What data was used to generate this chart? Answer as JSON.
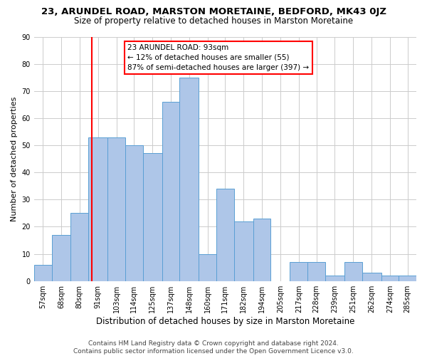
{
  "title": "23, ARUNDEL ROAD, MARSTON MORETAINE, BEDFORD, MK43 0JZ",
  "subtitle": "Size of property relative to detached houses in Marston Moretaine",
  "xlabel": "Distribution of detached houses by size in Marston Moretaine",
  "ylabel": "Number of detached properties",
  "annotation_line1": "23 ARUNDEL ROAD: 93sqm",
  "annotation_line2": "← 12% of detached houses are smaller (55)",
  "annotation_line3": "87% of semi-detached houses are larger (397) →",
  "footer_line1": "Contains HM Land Registry data © Crown copyright and database right 2024.",
  "footer_line2": "Contains public sector information licensed under the Open Government Licence v3.0.",
  "bar_edges": [
    57,
    68,
    80,
    91,
    103,
    114,
    125,
    137,
    148,
    160,
    171,
    182,
    194,
    205,
    217,
    228,
    239,
    251,
    262,
    274,
    285
  ],
  "bar_heights": [
    6,
    17,
    25,
    53,
    53,
    50,
    47,
    66,
    75,
    10,
    34,
    22,
    23,
    0,
    7,
    7,
    2,
    7,
    3,
    2,
    2
  ],
  "bar_color": "#aec6e8",
  "bar_edge_color": "#5a9fd4",
  "red_line_x": 93,
  "ylim": [
    0,
    90
  ],
  "yticks": [
    0,
    10,
    20,
    30,
    40,
    50,
    60,
    70,
    80,
    90
  ],
  "title_fontsize": 9.5,
  "subtitle_fontsize": 8.5,
  "xlabel_fontsize": 8.5,
  "ylabel_fontsize": 8,
  "tick_fontsize": 7,
  "annotation_fontsize": 7.5,
  "footer_fontsize": 6.5,
  "background_color": "#ffffff",
  "grid_color": "#cccccc"
}
